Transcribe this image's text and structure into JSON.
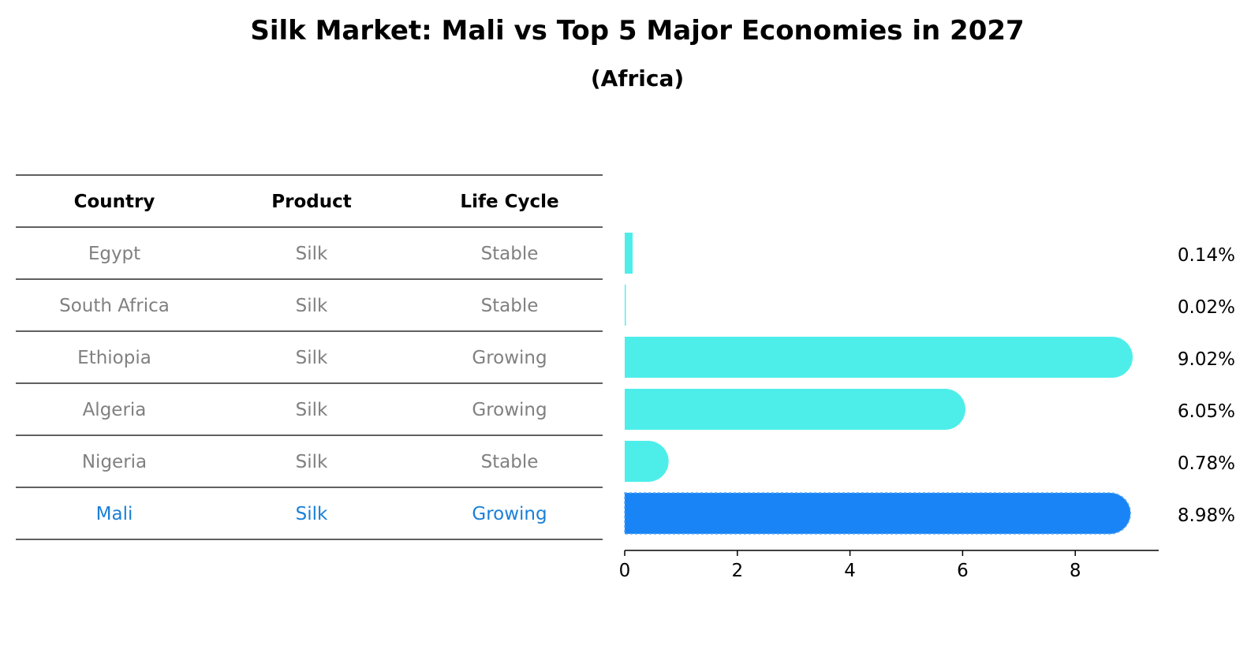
{
  "title": "Silk Market: Mali vs Top 5 Major Economies in 2027",
  "subtitle": "(Africa)",
  "table": {
    "headers": [
      "Country",
      "Product",
      "Life Cycle"
    ],
    "rows": [
      [
        "Egypt",
        "Silk",
        "Stable"
      ],
      [
        "South Africa",
        "Silk",
        "Stable"
      ],
      [
        "Ethiopia",
        "Silk",
        "Growing"
      ],
      [
        "Algeria",
        "Silk",
        "Growing"
      ],
      [
        "Nigeria",
        "Silk",
        "Stable"
      ],
      [
        "Mali",
        "Silk",
        "Growing"
      ]
    ]
  },
  "colors": {
    "other": "#4DEEEA",
    "highlight": "#1984F5",
    "muted_text": "#808080",
    "highlight_text": "#1A80D8"
  },
  "chart_data": {
    "type": "bar",
    "orientation": "horizontal",
    "categories": [
      "Egypt",
      "South Africa",
      "Ethiopia",
      "Algeria",
      "Nigeria",
      "Mali"
    ],
    "values": [
      0.14,
      0.02,
      9.02,
      6.05,
      0.78,
      8.98
    ],
    "value_labels": [
      "0.14%",
      "0.02%",
      "9.02%",
      "6.05%",
      "0.78%",
      "8.98%"
    ],
    "highlight": "Mali",
    "xlim": [
      0,
      9.5
    ],
    "xticks": [
      0,
      2,
      4,
      6,
      8
    ],
    "grid": false
  }
}
